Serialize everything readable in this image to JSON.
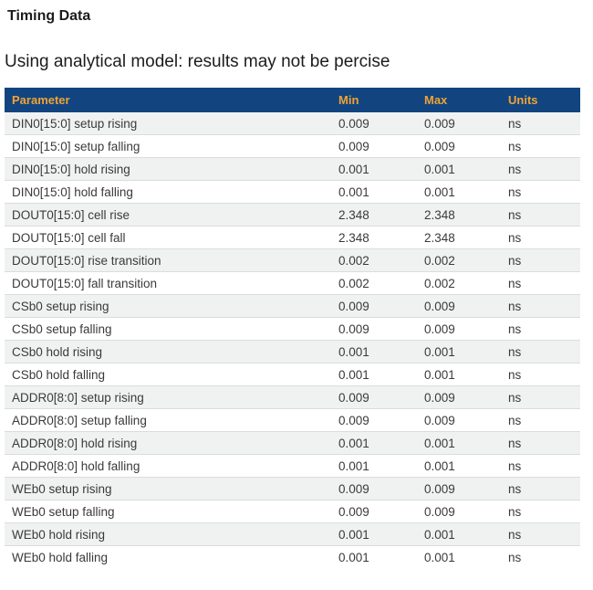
{
  "page": {
    "title": "Timing Data",
    "subtitle": "Using analytical model: results may not be percise"
  },
  "colors": {
    "table_header_bg": "#124580",
    "table_header_text": "#f0a335",
    "row_alt_bg": "#f0f2f2",
    "row_separator": "#dadddd",
    "body_text": "#3a3a3a"
  },
  "table": {
    "columns": [
      "Parameter",
      "Min",
      "Max",
      "Units"
    ],
    "rows": [
      {
        "parameter": "DIN0[15:0] setup rising",
        "min": "0.009",
        "max": "0.009",
        "units": "ns"
      },
      {
        "parameter": "DIN0[15:0] setup falling",
        "min": "0.009",
        "max": "0.009",
        "units": "ns"
      },
      {
        "parameter": "DIN0[15:0] hold rising",
        "min": "0.001",
        "max": "0.001",
        "units": "ns"
      },
      {
        "parameter": "DIN0[15:0] hold falling",
        "min": "0.001",
        "max": "0.001",
        "units": "ns"
      },
      {
        "parameter": "DOUT0[15:0] cell rise",
        "min": "2.348",
        "max": "2.348",
        "units": "ns"
      },
      {
        "parameter": "DOUT0[15:0] cell fall",
        "min": "2.348",
        "max": "2.348",
        "units": "ns"
      },
      {
        "parameter": "DOUT0[15:0] rise transition",
        "min": "0.002",
        "max": "0.002",
        "units": "ns"
      },
      {
        "parameter": "DOUT0[15:0] fall transition",
        "min": "0.002",
        "max": "0.002",
        "units": "ns"
      },
      {
        "parameter": "CSb0 setup rising",
        "min": "0.009",
        "max": "0.009",
        "units": "ns"
      },
      {
        "parameter": "CSb0 setup falling",
        "min": "0.009",
        "max": "0.009",
        "units": "ns"
      },
      {
        "parameter": "CSb0 hold rising",
        "min": "0.001",
        "max": "0.001",
        "units": "ns"
      },
      {
        "parameter": "CSb0 hold falling",
        "min": "0.001",
        "max": "0.001",
        "units": "ns"
      },
      {
        "parameter": "ADDR0[8:0] setup rising",
        "min": "0.009",
        "max": "0.009",
        "units": "ns"
      },
      {
        "parameter": "ADDR0[8:0] setup falling",
        "min": "0.009",
        "max": "0.009",
        "units": "ns"
      },
      {
        "parameter": "ADDR0[8:0] hold rising",
        "min": "0.001",
        "max": "0.001",
        "units": "ns"
      },
      {
        "parameter": "ADDR0[8:0] hold falling",
        "min": "0.001",
        "max": "0.001",
        "units": "ns"
      },
      {
        "parameter": "WEb0 setup rising",
        "min": "0.009",
        "max": "0.009",
        "units": "ns"
      },
      {
        "parameter": "WEb0 setup falling",
        "min": "0.009",
        "max": "0.009",
        "units": "ns"
      },
      {
        "parameter": "WEb0 hold rising",
        "min": "0.001",
        "max": "0.001",
        "units": "ns"
      },
      {
        "parameter": "WEb0 hold falling",
        "min": "0.001",
        "max": "0.001",
        "units": "ns"
      }
    ]
  }
}
